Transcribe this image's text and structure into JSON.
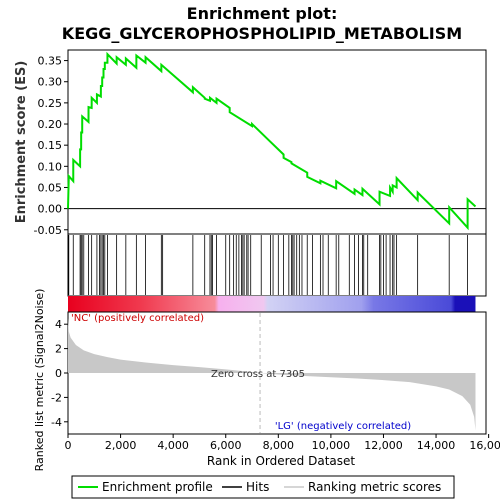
{
  "chart_data": {
    "type": "line",
    "title_line1": "Enrichment plot:",
    "title_line2": "KEGG_GLYCEROPHOSPHOLIPID_METABOLISM",
    "es_ylabel": "Enrichment score (ES)",
    "metric_ylabel": "Ranked list metric (Signal2Noise)",
    "xlabel": "Rank in Ordered Dataset",
    "xlim": [
      0,
      15900
    ],
    "es_ylim": [
      -0.06,
      0.375
    ],
    "metric_ylim": [
      -5,
      5
    ],
    "x_ticks": [
      0,
      2000,
      4000,
      6000,
      8000,
      10000,
      12000,
      14000,
      16000
    ],
    "x_tick_labels": [
      "0",
      "2,000",
      "4,000",
      "6,000",
      "8,000",
      "10,000",
      "12,000",
      "14,000",
      "16,000"
    ],
    "es_ticks": [
      -0.05,
      0.0,
      0.05,
      0.1,
      0.15,
      0.2,
      0.25,
      0.3,
      0.35
    ],
    "es_tick_labels": [
      "-0.05",
      "0.00",
      "0.05",
      "0.10",
      "0.15",
      "0.20",
      "0.25",
      "0.30",
      "0.35"
    ],
    "metric_ticks": [
      -4,
      -2,
      0,
      2,
      4
    ],
    "metric_tick_labels": [
      "-4",
      "-2",
      "0",
      "2",
      "4"
    ],
    "zero_cross_label": "Zero cross at 7305",
    "zero_cross": 7305,
    "pos_label": "'NC' (positively correlated)",
    "neg_label": "'LG' (negatively correlated)",
    "legend": [
      "Enrichment profile",
      "Hits",
      "Ranking metric scores"
    ],
    "n_genes": 15500,
    "hits": [
      30,
      200,
      460,
      500,
      540,
      600,
      780,
      900,
      1100,
      1200,
      1250,
      1300,
      1350,
      1400,
      1500,
      1850,
      2200,
      2600,
      2950,
      3550,
      3600,
      4750,
      5200,
      5400,
      5450,
      5500,
      5650,
      6000,
      6150,
      6300,
      6400,
      6500,
      6600,
      6650,
      6700,
      6800,
      6850,
      6950,
      7350,
      7700,
      7800,
      8000,
      8200,
      8400,
      8500,
      8550,
      8600,
      8700,
      8800,
      8900,
      9100,
      9300,
      9600,
      9700,
      9900,
      10200,
      10300,
      10700,
      10900,
      11050,
      11200,
      11250,
      11400,
      11850,
      11900,
      12000,
      12100,
      12250,
      12350,
      12400,
      12500,
      13300,
      14500,
      15200
    ],
    "es_profile": [
      [
        0,
        0.0
      ],
      [
        30,
        0.077
      ],
      [
        200,
        0.065
      ],
      [
        201,
        0.115
      ],
      [
        460,
        0.1
      ],
      [
        461,
        0.14
      ],
      [
        500,
        0.14
      ],
      [
        501,
        0.18
      ],
      [
        540,
        0.18
      ],
      [
        541,
        0.218
      ],
      [
        780,
        0.205
      ],
      [
        781,
        0.24
      ],
      [
        900,
        0.238
      ],
      [
        901,
        0.262
      ],
      [
        1100,
        0.25
      ],
      [
        1101,
        0.27
      ],
      [
        1250,
        0.265
      ],
      [
        1251,
        0.29
      ],
      [
        1300,
        0.29
      ],
      [
        1301,
        0.31
      ],
      [
        1350,
        0.31
      ],
      [
        1351,
        0.33
      ],
      [
        1400,
        0.33
      ],
      [
        1401,
        0.345
      ],
      [
        1500,
        0.345
      ],
      [
        1501,
        0.365
      ],
      [
        1850,
        0.343
      ],
      [
        1851,
        0.358
      ],
      [
        2200,
        0.34
      ],
      [
        2201,
        0.355
      ],
      [
        2600,
        0.333
      ],
      [
        2601,
        0.362
      ],
      [
        2950,
        0.345
      ],
      [
        2951,
        0.358
      ],
      [
        3550,
        0.325
      ],
      [
        3551,
        0.34
      ],
      [
        4750,
        0.275
      ],
      [
        4751,
        0.287
      ],
      [
        5200,
        0.262
      ],
      [
        5201,
        0.26
      ],
      [
        5400,
        0.255
      ],
      [
        5401,
        0.262
      ],
      [
        5650,
        0.25
      ],
      [
        5651,
        0.26
      ],
      [
        6150,
        0.238
      ],
      [
        6151,
        0.228
      ],
      [
        7000,
        0.195
      ],
      [
        7001,
        0.2
      ],
      [
        7700,
        0.158
      ],
      [
        8200,
        0.128
      ],
      [
        8201,
        0.12
      ],
      [
        8500,
        0.11
      ],
      [
        8501,
        0.107
      ],
      [
        9100,
        0.085
      ],
      [
        9101,
        0.075
      ],
      [
        9600,
        0.06
      ],
      [
        9601,
        0.066
      ],
      [
        10200,
        0.048
      ],
      [
        10201,
        0.065
      ],
      [
        10900,
        0.035
      ],
      [
        10901,
        0.045
      ],
      [
        11200,
        0.032
      ],
      [
        11201,
        0.047
      ],
      [
        11850,
        0.01
      ],
      [
        11851,
        0.04
      ],
      [
        12250,
        0.03
      ],
      [
        12251,
        0.05
      ],
      [
        12350,
        0.04
      ],
      [
        12351,
        0.055
      ],
      [
        12500,
        0.05
      ],
      [
        12501,
        0.072
      ],
      [
        13300,
        0.02
      ],
      [
        13301,
        0.038
      ],
      [
        14500,
        -0.035
      ],
      [
        14501,
        0.003
      ],
      [
        15200,
        -0.045
      ],
      [
        15201,
        0.022
      ],
      [
        15500,
        0.005
      ]
    ],
    "metric_curve": [
      [
        0,
        4.5
      ],
      [
        30,
        3.4
      ],
      [
        100,
        2.9
      ],
      [
        300,
        2.3
      ],
      [
        600,
        1.85
      ],
      [
        1000,
        1.55
      ],
      [
        1500,
        1.3
      ],
      [
        2000,
        1.1
      ],
      [
        3000,
        0.85
      ],
      [
        4000,
        0.65
      ],
      [
        5000,
        0.48
      ],
      [
        6000,
        0.3
      ],
      [
        7000,
        0.08
      ],
      [
        7305,
        0.0
      ],
      [
        8000,
        -0.12
      ],
      [
        9000,
        -0.25
      ],
      [
        10000,
        -0.35
      ],
      [
        11000,
        -0.45
      ],
      [
        12000,
        -0.58
      ],
      [
        13000,
        -0.75
      ],
      [
        14000,
        -1.1
      ],
      [
        14500,
        -1.35
      ],
      [
        15000,
        -1.9
      ],
      [
        15300,
        -2.6
      ],
      [
        15450,
        -3.6
      ],
      [
        15500,
        -4.7
      ]
    ],
    "colors": {
      "profile": "#00dd00",
      "hits": "#000000",
      "metric_fill": "#c8c8c8",
      "pos_text": "#cc0000",
      "neg_text": "#0000cc",
      "zero_line": "#bbbbbb"
    }
  }
}
